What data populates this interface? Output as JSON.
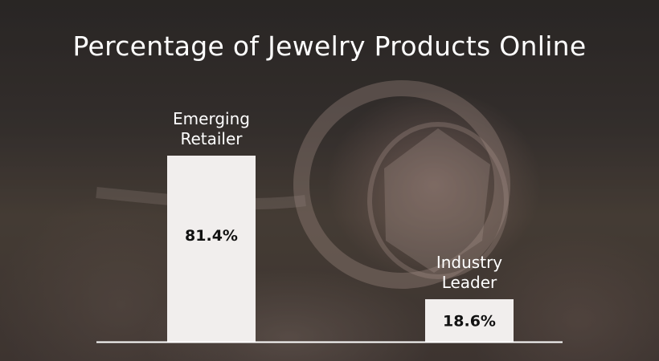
{
  "chart_data": {
    "type": "bar",
    "title": "Percentage of Jewelry Products Online",
    "categories": [
      [
        "Emerging",
        "Retailer"
      ],
      [
        "Industry",
        "Leader"
      ]
    ],
    "values": [
      81.4,
      18.6
    ],
    "value_labels": [
      "81.4%",
      "18.6%"
    ],
    "ylim": [
      0,
      100
    ],
    "xlabel": "",
    "ylabel": "",
    "grid": false,
    "bar_color": "#f1eeed",
    "axis_color": "#ffffff"
  }
}
